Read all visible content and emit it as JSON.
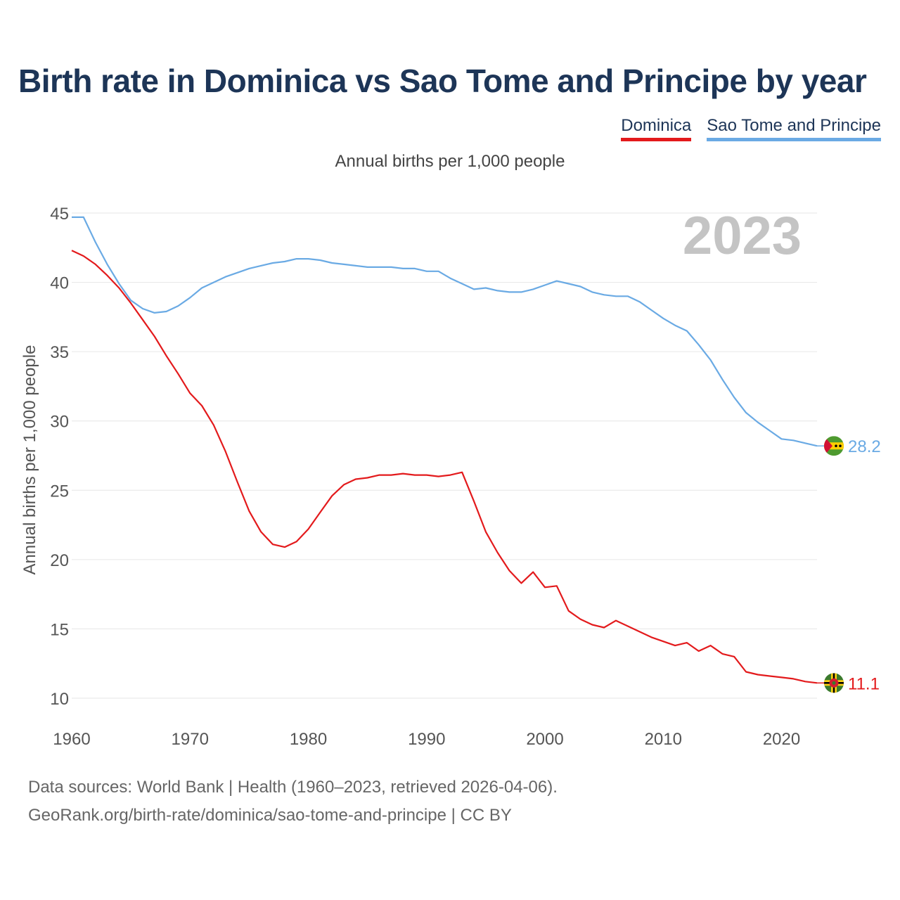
{
  "chart_data": {
    "type": "line",
    "title": "Birth rate in Dominica vs Sao Tome and Principe by year",
    "subtitle": "Annual births per 1,000 people",
    "ylabel": "Annual births per 1,000 people",
    "xlabel": "",
    "year_watermark": "2023",
    "xlim": [
      1960,
      2023
    ],
    "ylim": [
      10,
      45
    ],
    "x_ticks": [
      1960,
      1970,
      1980,
      1990,
      2000,
      2010,
      2020
    ],
    "y_ticks": [
      10,
      15,
      20,
      25,
      30,
      35,
      40,
      45
    ],
    "grid": "horizontal",
    "legend_position": "top-right",
    "x": [
      1960,
      1961,
      1962,
      1963,
      1964,
      1965,
      1966,
      1967,
      1968,
      1969,
      1970,
      1971,
      1972,
      1973,
      1974,
      1975,
      1976,
      1977,
      1978,
      1979,
      1980,
      1981,
      1982,
      1983,
      1984,
      1985,
      1986,
      1987,
      1988,
      1989,
      1990,
      1991,
      1992,
      1993,
      1994,
      1995,
      1996,
      1997,
      1998,
      1999,
      2000,
      2001,
      2002,
      2003,
      2004,
      2005,
      2006,
      2007,
      2008,
      2009,
      2010,
      2011,
      2012,
      2013,
      2014,
      2015,
      2016,
      2017,
      2018,
      2019,
      2020,
      2021,
      2022,
      2023
    ],
    "series": [
      {
        "name": "Dominica",
        "color": "#e31a1c",
        "end_label": "11.1",
        "values": [
          42.3,
          41.9,
          41.3,
          40.5,
          39.6,
          38.5,
          37.3,
          36.1,
          34.7,
          33.4,
          32.0,
          31.1,
          29.7,
          27.8,
          25.6,
          23.5,
          22.0,
          21.1,
          20.9,
          21.3,
          22.2,
          23.4,
          24.6,
          25.4,
          25.8,
          25.9,
          26.1,
          26.1,
          26.2,
          26.1,
          26.1,
          26.0,
          26.1,
          26.3,
          24.2,
          22.0,
          20.5,
          19.2,
          18.3,
          19.1,
          18.0,
          18.1,
          16.3,
          15.7,
          15.3,
          15.1,
          15.6,
          15.2,
          14.8,
          14.4,
          14.1,
          13.8,
          14.0,
          13.4,
          13.8,
          13.2,
          13.0,
          11.9,
          11.7,
          11.6,
          11.5,
          11.4,
          11.2,
          11.1
        ]
      },
      {
        "name": "Sao Tome and Principe",
        "color": "#6aaae4",
        "end_label": "28.2",
        "values": [
          44.7,
          44.7,
          42.9,
          41.3,
          39.9,
          38.7,
          38.1,
          37.8,
          37.9,
          38.3,
          38.9,
          39.6,
          40.0,
          40.4,
          40.7,
          41.0,
          41.2,
          41.4,
          41.5,
          41.7,
          41.7,
          41.6,
          41.4,
          41.3,
          41.2,
          41.1,
          41.1,
          41.1,
          41.0,
          41.0,
          40.8,
          40.8,
          40.3,
          39.9,
          39.5,
          39.6,
          39.4,
          39.3,
          39.3,
          39.5,
          39.8,
          40.1,
          39.9,
          39.7,
          39.3,
          39.1,
          39.0,
          39.0,
          38.6,
          38.0,
          37.4,
          36.9,
          36.5,
          35.5,
          34.4,
          33.0,
          31.7,
          30.6,
          29.9,
          29.3,
          28.7,
          28.6,
          28.4,
          28.2
        ]
      }
    ]
  },
  "footer": {
    "line1": "Data sources: World Bank | Health (1960–2023, retrieved 2026-04-06).",
    "line2": "GeoRank.org/birth-rate/dominica/sao-tome-and-principe | CC BY"
  },
  "flags": {
    "dominica": "dominica-flag-icon",
    "sao_tome": "sao-tome-flag-icon"
  }
}
